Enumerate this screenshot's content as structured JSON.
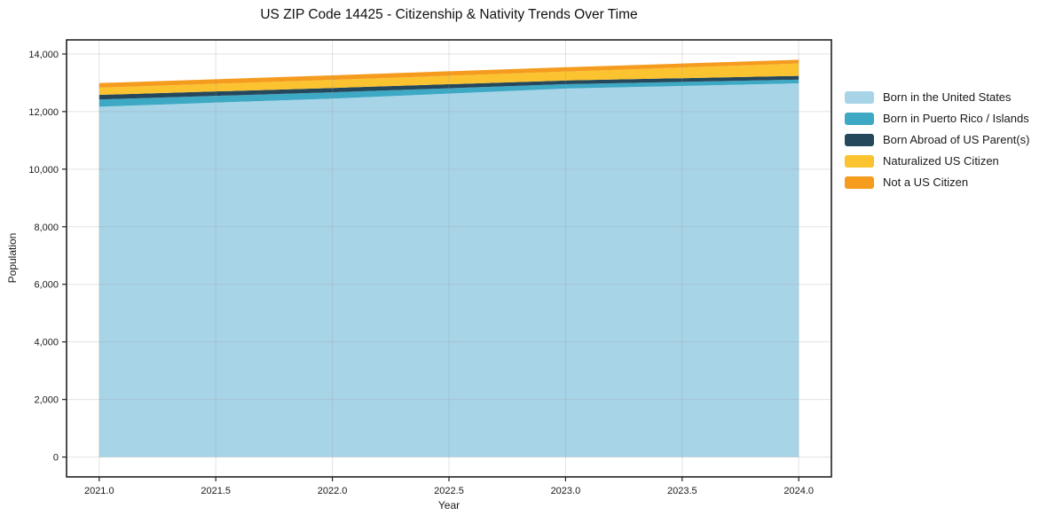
{
  "chart_data": {
    "type": "area",
    "stacked": true,
    "title": "US ZIP Code 14425 - Citizenship & Nativity Trends Over Time",
    "xlabel": "Year",
    "ylabel": "Population",
    "x": [
      2021,
      2022,
      2023,
      2024
    ],
    "series": [
      {
        "id": "born-in-united-states",
        "name": "Born in the United States",
        "color": "#a8d4e8",
        "values": [
          12170,
          12450,
          12800,
          12980
        ]
      },
      {
        "id": "born-puerto-rico-islands",
        "name": "Born in Puerto Rico / Islands",
        "color": "#3da9c5",
        "values": [
          250,
          220,
          150,
          130
        ]
      },
      {
        "id": "born-abroad-us-parents",
        "name": "Born Abroad of US Parent(s)",
        "color": "#26485c",
        "values": [
          160,
          150,
          130,
          130
        ]
      },
      {
        "id": "naturalized-us-citizen",
        "name": "Naturalized US Citizen",
        "color": "#fcc330",
        "values": [
          250,
          280,
          310,
          430
        ]
      },
      {
        "id": "not-a-us-citizen",
        "name": "Not a US Citizen",
        "color": "#f59b1e",
        "values": [
          160,
          160,
          150,
          130
        ]
      }
    ],
    "stack_totals": [
      12990,
      13260,
      13540,
      13800
    ],
    "xlim": [
      2020.86,
      2024.14
    ],
    "ylim": [
      -690,
      14490
    ],
    "xticks": [
      {
        "v": 2021.0,
        "label": "2021.0"
      },
      {
        "v": 2021.5,
        "label": "2021.5"
      },
      {
        "v": 2022.0,
        "label": "2022.0"
      },
      {
        "v": 2022.5,
        "label": "2022.5"
      },
      {
        "v": 2023.0,
        "label": "2023.0"
      },
      {
        "v": 2023.5,
        "label": "2023.5"
      },
      {
        "v": 2024.0,
        "label": "2024.0"
      }
    ],
    "yticks": [
      {
        "v": 0,
        "label": "0"
      },
      {
        "v": 2000,
        "label": "2,000"
      },
      {
        "v": 4000,
        "label": "4,000"
      },
      {
        "v": 6000,
        "label": "6,000"
      },
      {
        "v": 8000,
        "label": "8,000"
      },
      {
        "v": 10000,
        "label": "10,000"
      },
      {
        "v": 12000,
        "label": "12,000"
      },
      {
        "v": 14000,
        "label": "14,000"
      }
    ],
    "grid": true,
    "legend_position": "right-outside"
  },
  "style": {
    "background": "#ffffff",
    "spine_color": "#222222",
    "spine_width": 1.6,
    "grid_color": "#999999",
    "grid_opacity": 0.28,
    "tick_color": "#222222",
    "text_color": "#1a1a1a"
  }
}
